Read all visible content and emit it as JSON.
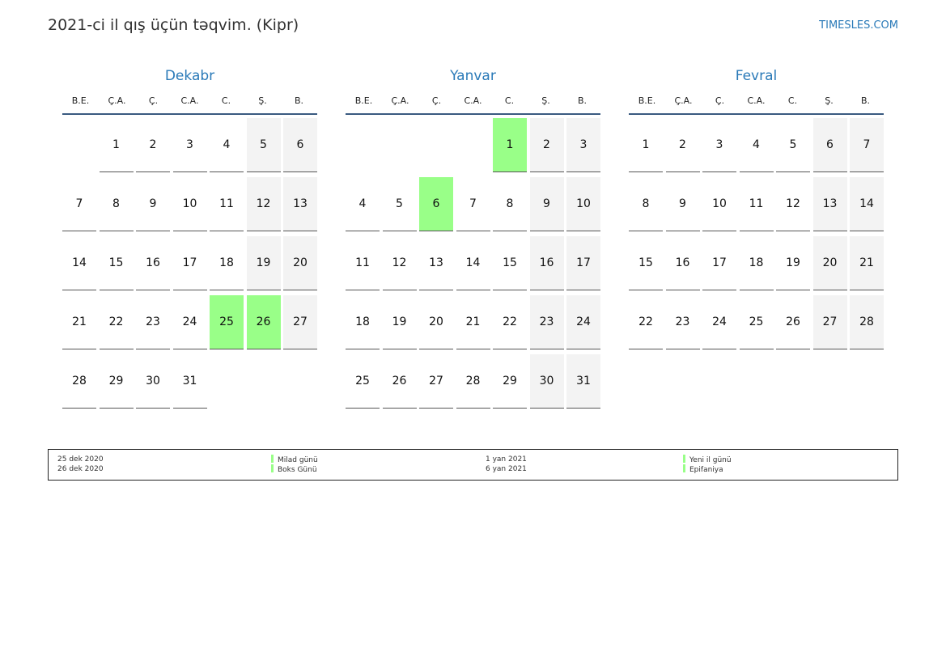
{
  "header": {
    "title": "2021-ci il qış üçün təqvim. (Kipr)",
    "brand": "TIMESLES.COM"
  },
  "weekdays": [
    "B.E.",
    "Ç.A.",
    "Ç.",
    "C.A.",
    "C.",
    "Ş.",
    "B."
  ],
  "holiday_color": "#99ff88",
  "months": [
    {
      "name": "Dekabr",
      "weeks": [
        [
          null,
          1,
          2,
          3,
          4,
          5,
          6
        ],
        [
          7,
          8,
          9,
          10,
          11,
          12,
          13
        ],
        [
          14,
          15,
          16,
          17,
          18,
          19,
          20
        ],
        [
          21,
          22,
          23,
          24,
          25,
          26,
          27
        ],
        [
          28,
          29,
          30,
          31,
          null,
          null,
          null
        ]
      ],
      "holidays": [
        25,
        26
      ]
    },
    {
      "name": "Yanvar",
      "weeks": [
        [
          null,
          null,
          null,
          null,
          1,
          2,
          3
        ],
        [
          4,
          5,
          6,
          7,
          8,
          9,
          10
        ],
        [
          11,
          12,
          13,
          14,
          15,
          16,
          17
        ],
        [
          18,
          19,
          20,
          21,
          22,
          23,
          24
        ],
        [
          25,
          26,
          27,
          28,
          29,
          30,
          31
        ]
      ],
      "holidays": [
        1,
        6
      ]
    },
    {
      "name": "Fevral",
      "weeks": [
        [
          1,
          2,
          3,
          4,
          5,
          6,
          7
        ],
        [
          8,
          9,
          10,
          11,
          12,
          13,
          14
        ],
        [
          15,
          16,
          17,
          18,
          19,
          20,
          21
        ],
        [
          22,
          23,
          24,
          25,
          26,
          27,
          28
        ]
      ],
      "holidays": []
    }
  ],
  "legend": [
    {
      "date": "25 dek 2020",
      "name": "Milad günü"
    },
    {
      "date": "26 dek 2020",
      "name": "Boks Günü"
    },
    {
      "date": "1 yan 2021",
      "name": "Yeni il günü"
    },
    {
      "date": "6 yan 2021",
      "name": "Epifaniya"
    }
  ]
}
